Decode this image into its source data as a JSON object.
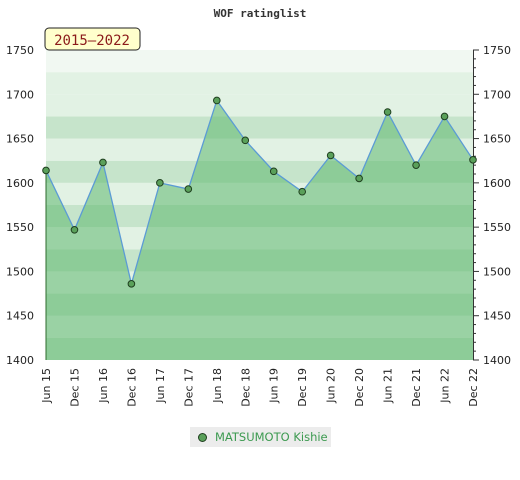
{
  "chart_data": {
    "type": "area",
    "title": "WOF ratinglist",
    "badge": "2015–2022",
    "ylim": [
      1400,
      1750
    ],
    "yticks": [
      1400,
      1450,
      1500,
      1550,
      1600,
      1650,
      1700,
      1750
    ],
    "categories": [
      "Jun 15",
      "Dec 15",
      "Jun 16",
      "Dec 16",
      "Jun 17",
      "Dec 17",
      "Jun 18",
      "Dec 18",
      "Jun 19",
      "Dec 19",
      "Jun 20",
      "Dec 20",
      "Jun 21",
      "Dec 21",
      "Jun 22",
      "Dec 22"
    ],
    "series": [
      {
        "name": "MATSUMOTO Kishie",
        "values": [
          1614,
          1547,
          1623,
          1486,
          1600,
          1593,
          1693,
          1648,
          1613,
          1590,
          1631,
          1605,
          1680,
          1620,
          1675,
          1626
        ]
      }
    ],
    "grid": true,
    "legend_position": "bottom",
    "colors": {
      "line": "#5b9bd5",
      "point_fill": "#5aa05a",
      "point_stroke": "#1f3f1f",
      "area_fill": "#5fb86f",
      "band_dark": "#c6e4cb",
      "band_light": "#e2f2e4",
      "band_lighter": "#f1f8f2",
      "badge_bg": "#ffffcc"
    }
  }
}
